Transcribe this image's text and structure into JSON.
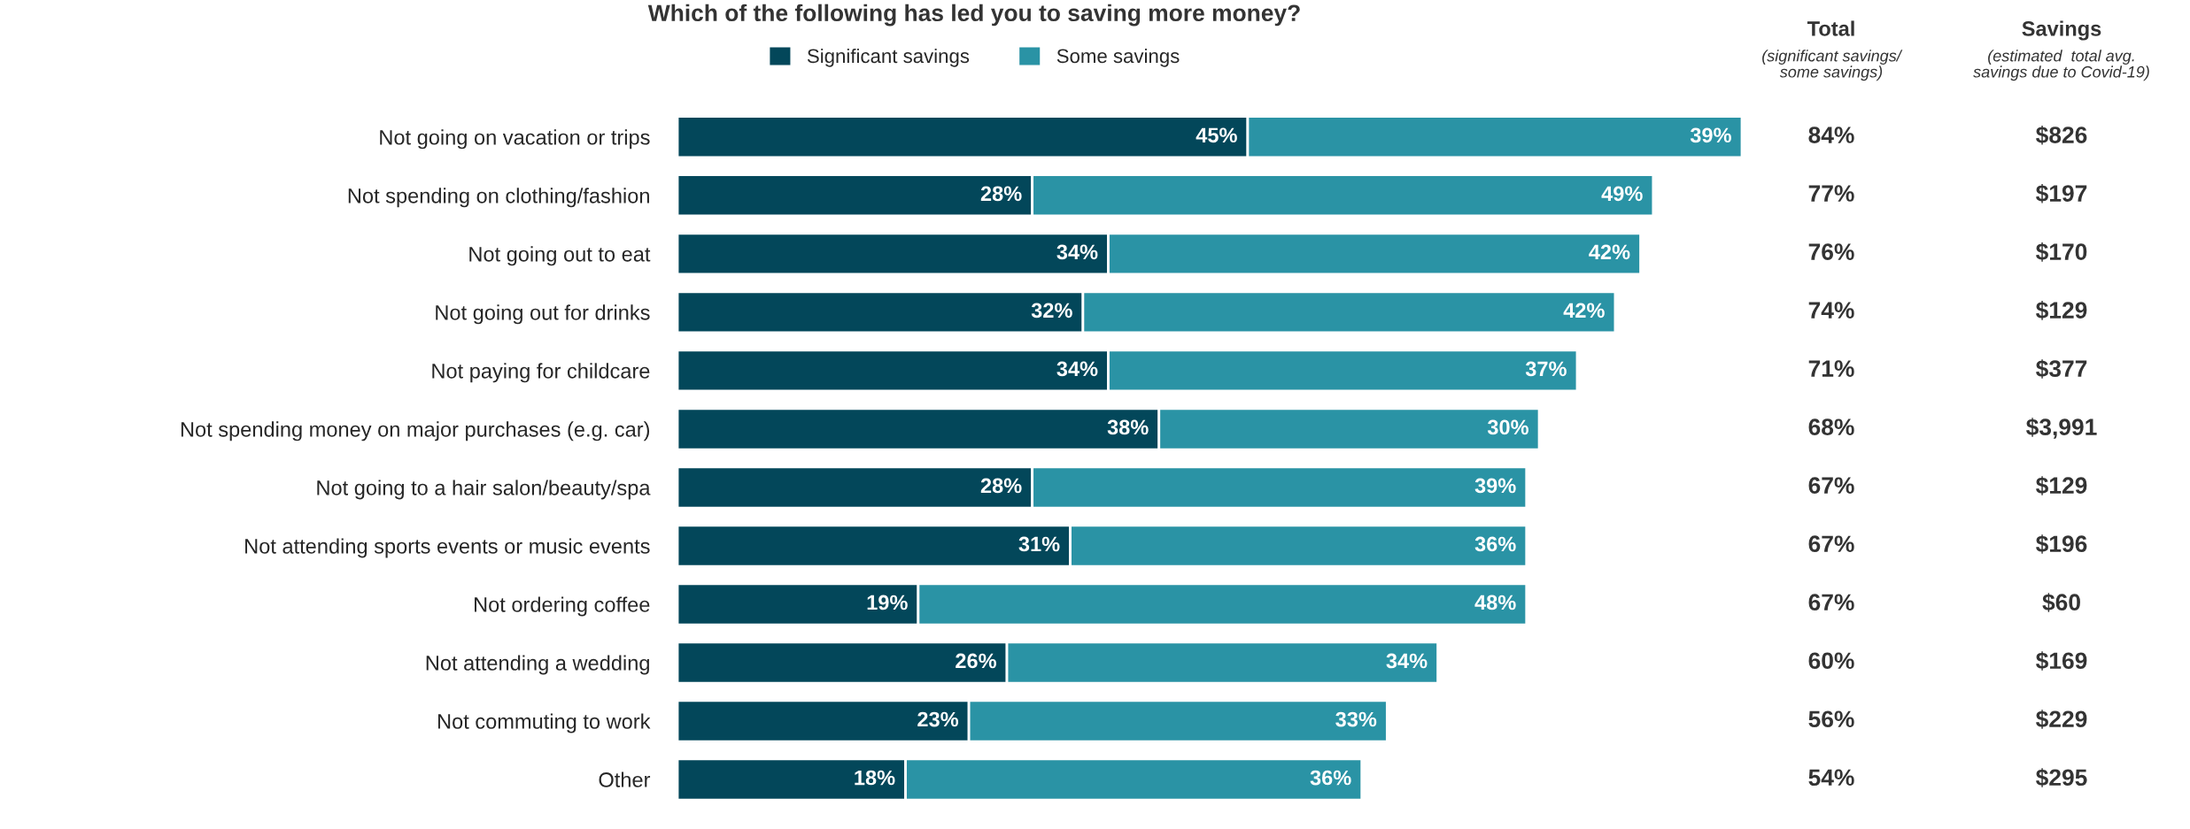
{
  "chart_data": {
    "type": "bar",
    "orientation": "horizontal",
    "stacked": true,
    "legend": "top",
    "grid": false,
    "title": "Which of the following has led you to saving more money?",
    "categories": [
      "Not going on vacation or trips",
      "Not spending on clothing/fashion",
      "Not going out to eat",
      "Not going out for drinks",
      "Not paying for childcare",
      "Not spending money on major purchases (e.g. car)",
      "Not going to a hair salon/beauty/spa",
      "Not attending sports events or music events",
      "Not ordering coffee",
      "Not attending a wedding",
      "Not commuting to work",
      "Other"
    ],
    "series": [
      {
        "name": "Significant savings",
        "color": "#03475a",
        "values": [
          45,
          28,
          34,
          32,
          34,
          38,
          28,
          31,
          19,
          26,
          23,
          18
        ],
        "value_labels": [
          "45%",
          "28%",
          "34%",
          "32%",
          "34%",
          "38%",
          "28%",
          "31%",
          "19%",
          "26%",
          "23%",
          "18%"
        ]
      },
      {
        "name": "Some savings",
        "color": "#2a93a5",
        "values": [
          39,
          49,
          42,
          42,
          37,
          30,
          39,
          36,
          48,
          34,
          33,
          36
        ],
        "value_labels": [
          "39%",
          "49%",
          "42%",
          "42%",
          "37%",
          "30%",
          "39%",
          "36%",
          "48%",
          "34%",
          "33%",
          "36%"
        ]
      }
    ],
    "annotations": [
      "Total",
      "(significant savings/\nsome savings)",
      "Savings",
      "(estimated  total avg.\nsavings due to Covid-19)",
      "84%",
      "77%",
      "76%",
      "74%",
      "71%",
      "68%",
      "67%",
      "67%",
      "67%",
      "60%",
      "56%",
      "54%",
      "$826",
      "$197",
      "$170",
      "$129",
      "$377",
      "$3,991",
      "$129",
      "$196",
      "$60",
      "$169",
      "$229",
      "$295"
    ]
  }
}
